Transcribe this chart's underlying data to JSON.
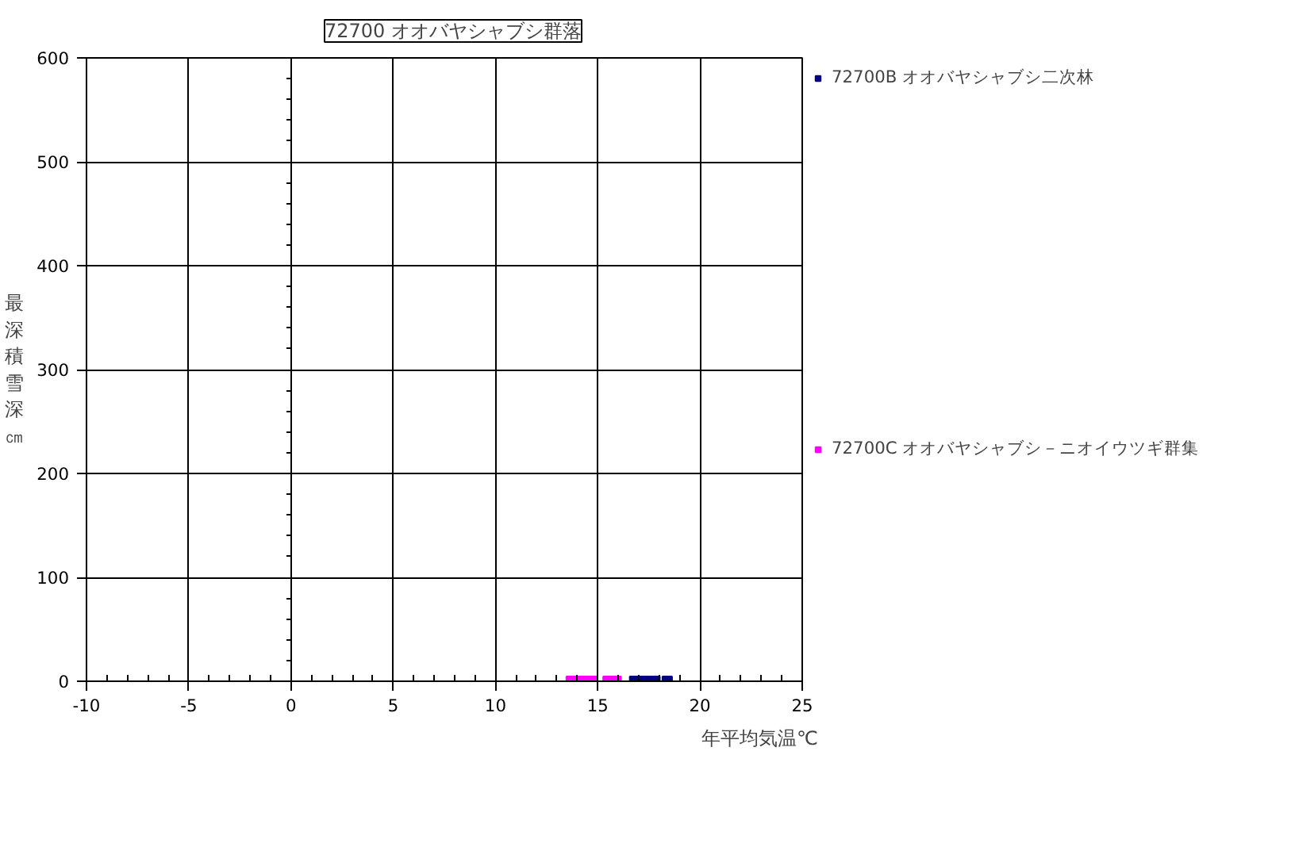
{
  "chart_data": {
    "type": "scatter",
    "title": "72700 オオバヤシャブシ群落",
    "xlabel": "年平均気温℃",
    "ylabel": "最深積雪深㎝",
    "xlim": [
      -10,
      25
    ],
    "xticks": [
      -10,
      -5,
      0,
      5,
      10,
      15,
      20,
      25
    ],
    "ylim": [
      0,
      600
    ],
    "yticks": [
      0,
      100,
      200,
      300,
      400,
      500,
      600
    ],
    "grid": true,
    "legend": "right",
    "marker": "square",
    "series": [
      {
        "name": "72700B オオバヤシャブシ二次林",
        "color": "#000080",
        "x": [
          16.8,
          17.3,
          17.8,
          18.4
        ],
        "values": [
          0,
          0,
          0,
          0
        ]
      },
      {
        "name": "72700C オオバヤシャブシ－ニオイウツギ群集",
        "color": "#ff00ff",
        "x": [
          13.7,
          14.2,
          14.7,
          15.5,
          15.9
        ],
        "values": [
          0,
          0,
          0,
          0,
          0
        ]
      }
    ]
  }
}
